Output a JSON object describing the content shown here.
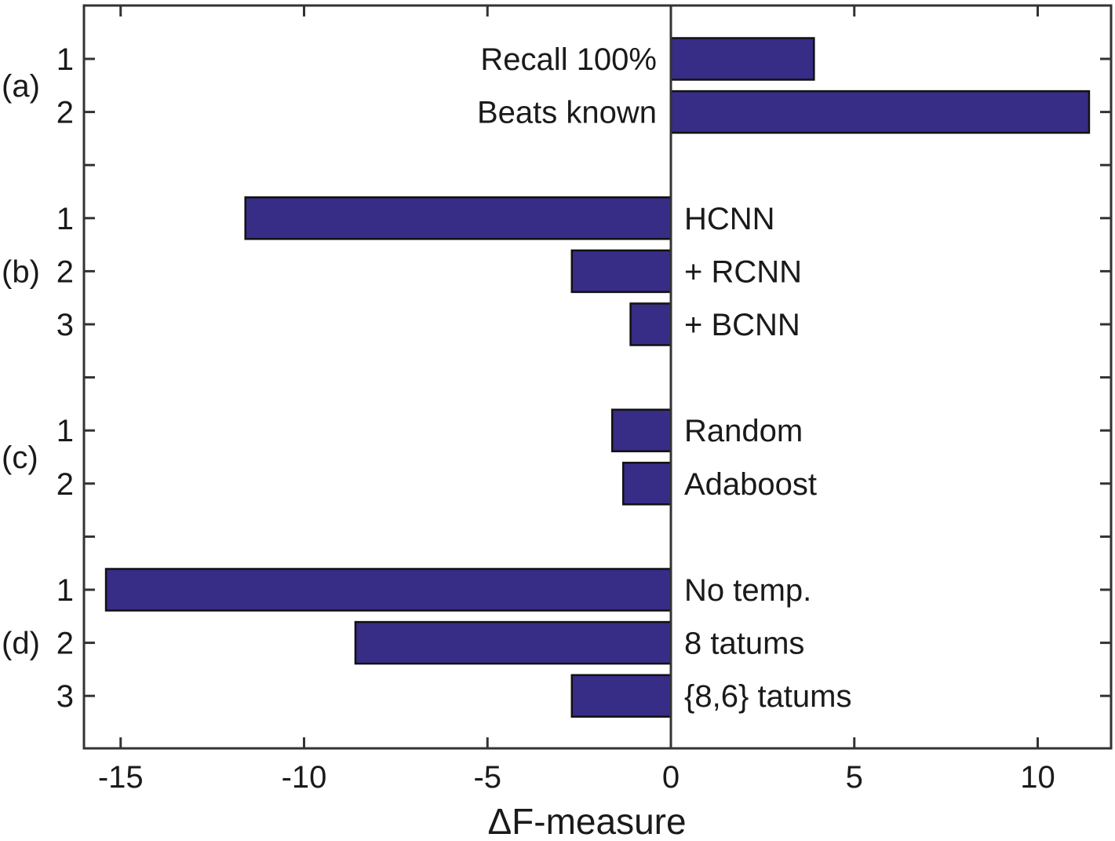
{
  "chart_data": {
    "type": "bar",
    "orientation": "horizontal",
    "xlabel": "ΔF-measure",
    "xlim": [
      -16,
      12
    ],
    "x_ticks": [
      -15,
      -10,
      -5,
      0,
      5,
      10
    ],
    "x_tick_labels": [
      "-15",
      "-10",
      "-5",
      "0",
      "5",
      "10"
    ],
    "bar_color": "#372c86",
    "grid": false,
    "groups": [
      {
        "label": "(a)",
        "bars": [
          {
            "index": "1",
            "label": "Recall 100%",
            "value": 3.9
          },
          {
            "index": "2",
            "label": "Beats known",
            "value": 11.4
          }
        ]
      },
      {
        "label": "(b)",
        "bars": [
          {
            "index": "1",
            "label": "HCNN",
            "value": -11.6
          },
          {
            "index": "2",
            "label": "+ RCNN",
            "value": -2.7
          },
          {
            "index": "3",
            "label": "+ BCNN",
            "value": -1.1
          }
        ]
      },
      {
        "label": "(c)",
        "bars": [
          {
            "index": "1",
            "label": "Random",
            "value": -1.6
          },
          {
            "index": "2",
            "label": "Adaboost",
            "value": -1.3
          }
        ]
      },
      {
        "label": "(d)",
        "bars": [
          {
            "index": "1",
            "label": "No temp.",
            "value": -15.4
          },
          {
            "index": "2",
            "label": "8 tatums",
            "value": -8.6
          },
          {
            "index": "3",
            "label": "{8,6} tatums",
            "value": -2.7
          }
        ]
      }
    ]
  }
}
